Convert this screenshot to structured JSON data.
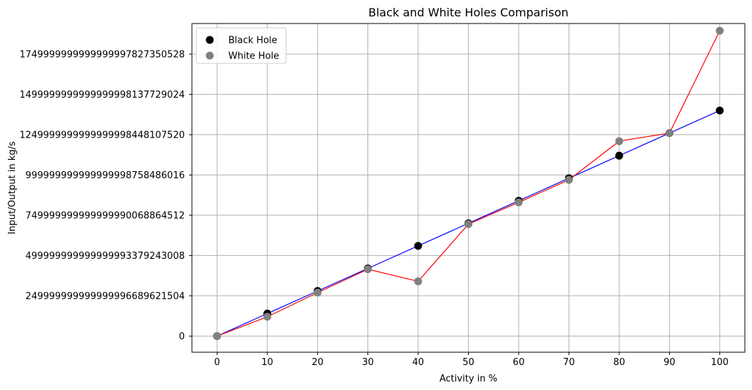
{
  "chart_data": {
    "type": "scatter",
    "title": "Black and White Holes Comparison",
    "xlabel": "Activity in %",
    "ylabel": "Input/Output in kg/s",
    "x": [
      0,
      10,
      20,
      30,
      40,
      50,
      60,
      70,
      80,
      90,
      100
    ],
    "xticks": [
      "0",
      "10",
      "20",
      "30",
      "40",
      "50",
      "60",
      "70",
      "80",
      "90",
      "100"
    ],
    "xlim": [
      -5,
      105
    ],
    "ylim": [
      -1e+26,
      1.94e+27
    ],
    "yticks": [
      {
        "value": 0,
        "label": "0"
      },
      {
        "value": 2.5e+26,
        "label": "249999999999999996689621504"
      },
      {
        "value": 5e+26,
        "label": "499999999999999993379243008"
      },
      {
        "value": 7.5e+26,
        "label": "749999999999999990068864512"
      },
      {
        "value": 1e+27,
        "label": "999999999999999998758486016"
      },
      {
        "value": 1.25e+27,
        "label": "1249999999999999998448107520"
      },
      {
        "value": 1.5e+27,
        "label": "1499999999999999998137729024"
      },
      {
        "value": 1.75e+27,
        "label": "1749999999999999997827350528"
      }
    ],
    "grid": true,
    "legend_position": "top-left",
    "series": [
      {
        "name": "Black Hole",
        "marker_color": "#000000",
        "line_color": "#0000ff",
        "values": [
          0,
          1.4e+26,
          2.8e+26,
          4.2e+26,
          5.6e+26,
          7e+26,
          8.4e+26,
          9.8e+26,
          1.12e+27,
          1.26e+27,
          1.4e+27
        ]
      },
      {
        "name": "White Hole",
        "marker_color": "#808080",
        "line_color": "#ff0000",
        "values": [
          0,
          1.2e+26,
          2.7e+26,
          4.15e+26,
          3.4e+26,
          6.95e+26,
          8.3e+26,
          9.7e+26,
          1.21e+27,
          1.26e+27,
          1.895e+27
        ]
      }
    ]
  }
}
